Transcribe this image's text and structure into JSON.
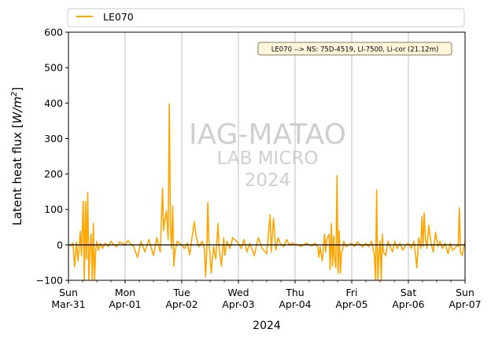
{
  "chart_data": {
    "type": "line",
    "title": "",
    "xlabel": "2024",
    "ylabel_plain": "Latent heat flux [",
    "ylabel_unit_W": "W",
    "ylabel_unit_m": "/m",
    "ylabel_unit_exp": "2",
    "ylabel_close": "]",
    "ylim": [
      -100,
      600
    ],
    "yticks": [
      -100,
      0,
      100,
      200,
      300,
      400,
      500,
      600
    ],
    "y_tick_labels": [
      "−100",
      "0",
      "100",
      "200",
      "300",
      "400",
      "500",
      "600"
    ],
    "xlim_days": [
      0,
      7
    ],
    "x_ticks": [
      {
        "day": 0,
        "weekday": "Sun",
        "date": "Mar-31"
      },
      {
        "day": 1,
        "weekday": "Mon",
        "date": "Apr-01"
      },
      {
        "day": 2,
        "weekday": "Tue",
        "date": "Apr-02"
      },
      {
        "day": 3,
        "weekday": "Wed",
        "date": "Apr-03"
      },
      {
        "day": 4,
        "weekday": "Thu",
        "date": "Apr-04"
      },
      {
        "day": 5,
        "weekday": "Fri",
        "date": "Apr-05"
      },
      {
        "day": 6,
        "weekday": "Sat",
        "date": "Apr-06"
      },
      {
        "day": 7,
        "weekday": "Sun",
        "date": "Apr-07"
      }
    ],
    "grid": "vertical",
    "legend_position": "top",
    "zero_line": true,
    "series": [
      {
        "name": "LE070",
        "color": "#FFA500",
        "points": [
          [
            0.0,
            0
          ],
          [
            0.04,
            -2
          ],
          [
            0.08,
            5
          ],
          [
            0.11,
            -62
          ],
          [
            0.14,
            8
          ],
          [
            0.17,
            -45
          ],
          [
            0.21,
            38
          ],
          [
            0.23,
            -30
          ],
          [
            0.26,
            123
          ],
          [
            0.28,
            -100
          ],
          [
            0.3,
            122
          ],
          [
            0.32,
            -40
          ],
          [
            0.34,
            148
          ],
          [
            0.36,
            -100
          ],
          [
            0.38,
            -10
          ],
          [
            0.4,
            30
          ],
          [
            0.42,
            -100
          ],
          [
            0.44,
            60
          ],
          [
            0.46,
            -100
          ],
          [
            0.48,
            -20
          ],
          [
            0.5,
            10
          ],
          [
            0.53,
            -15
          ],
          [
            0.56,
            5
          ],
          [
            0.6,
            -10
          ],
          [
            0.65,
            5
          ],
          [
            0.7,
            -5
          ],
          [
            0.75,
            10
          ],
          [
            0.8,
            0
          ],
          [
            0.85,
            -5
          ],
          [
            0.9,
            8
          ],
          [
            1.0,
            2
          ],
          [
            1.05,
            12
          ],
          [
            1.1,
            3
          ],
          [
            1.15,
            -5
          ],
          [
            1.22,
            -35
          ],
          [
            1.28,
            10
          ],
          [
            1.35,
            -20
          ],
          [
            1.42,
            15
          ],
          [
            1.5,
            -30
          ],
          [
            1.56,
            20
          ],
          [
            1.62,
            -20
          ],
          [
            1.66,
            160
          ],
          [
            1.68,
            40
          ],
          [
            1.7,
            70
          ],
          [
            1.73,
            95
          ],
          [
            1.76,
            15
          ],
          [
            1.78,
            398
          ],
          [
            1.8,
            50
          ],
          [
            1.82,
            -10
          ],
          [
            1.84,
            110
          ],
          [
            1.86,
            -60
          ],
          [
            1.88,
            -20
          ],
          [
            1.92,
            10
          ],
          [
            2.0,
            0
          ],
          [
            2.05,
            -10
          ],
          [
            2.1,
            5
          ],
          [
            2.14,
            -28
          ],
          [
            2.18,
            20
          ],
          [
            2.22,
            65
          ],
          [
            2.26,
            20
          ],
          [
            2.3,
            -5
          ],
          [
            2.36,
            10
          ],
          [
            2.4,
            -10
          ],
          [
            2.42,
            -90
          ],
          [
            2.44,
            -20
          ],
          [
            2.46,
            120
          ],
          [
            2.48,
            10
          ],
          [
            2.52,
            -80
          ],
          [
            2.56,
            -5
          ],
          [
            2.6,
            -40
          ],
          [
            2.64,
            60
          ],
          [
            2.66,
            -10
          ],
          [
            2.7,
            -60
          ],
          [
            2.74,
            20
          ],
          [
            2.76,
            -30
          ],
          [
            2.8,
            10
          ],
          [
            2.85,
            -10
          ],
          [
            2.9,
            20
          ],
          [
            3.0,
            5
          ],
          [
            3.05,
            -10
          ],
          [
            3.1,
            15
          ],
          [
            3.15,
            -20
          ],
          [
            3.2,
            5
          ],
          [
            3.28,
            -30
          ],
          [
            3.35,
            20
          ],
          [
            3.42,
            -10
          ],
          [
            3.5,
            -25
          ],
          [
            3.56,
            85
          ],
          [
            3.58,
            -20
          ],
          [
            3.62,
            75
          ],
          [
            3.66,
            -15
          ],
          [
            3.7,
            20
          ],
          [
            3.75,
            0
          ],
          [
            3.8,
            -5
          ],
          [
            3.85,
            15
          ],
          [
            3.9,
            0
          ],
          [
            3.95,
            5
          ],
          [
            4.0,
            2
          ],
          [
            4.05,
            0
          ],
          [
            4.1,
            -5
          ],
          [
            4.2,
            5
          ],
          [
            4.3,
            -3
          ],
          [
            4.35,
            5
          ],
          [
            4.4,
            -5
          ],
          [
            4.42,
            -35
          ],
          [
            4.44,
            -5
          ],
          [
            4.48,
            -45
          ],
          [
            4.52,
            30
          ],
          [
            4.54,
            -20
          ],
          [
            4.56,
            15
          ],
          [
            4.6,
            30
          ],
          [
            4.62,
            -70
          ],
          [
            4.64,
            60
          ],
          [
            4.66,
            -60
          ],
          [
            4.68,
            25
          ],
          [
            4.7,
            -40
          ],
          [
            4.72,
            -65
          ],
          [
            4.74,
            195
          ],
          [
            4.76,
            -80
          ],
          [
            4.78,
            40
          ],
          [
            4.8,
            -80
          ],
          [
            4.82,
            -20
          ],
          [
            4.84,
            -15
          ],
          [
            4.86,
            10
          ],
          [
            4.9,
            -5
          ],
          [
            5.0,
            5
          ],
          [
            5.05,
            -5
          ],
          [
            5.1,
            8
          ],
          [
            5.15,
            0
          ],
          [
            5.2,
            -6
          ],
          [
            5.25,
            5
          ],
          [
            5.3,
            -5
          ],
          [
            5.35,
            10
          ],
          [
            5.4,
            -28
          ],
          [
            5.42,
            -100
          ],
          [
            5.44,
            155
          ],
          [
            5.46,
            -100
          ],
          [
            5.48,
            -30
          ],
          [
            5.5,
            10
          ],
          [
            5.52,
            -100
          ],
          [
            5.54,
            30
          ],
          [
            5.56,
            -20
          ],
          [
            5.6,
            -30
          ],
          [
            5.64,
            10
          ],
          [
            5.68,
            -5
          ],
          [
            5.72,
            -20
          ],
          [
            5.76,
            10
          ],
          [
            5.8,
            -10
          ],
          [
            5.85,
            5
          ],
          [
            5.9,
            -15
          ],
          [
            5.96,
            0
          ],
          [
            6.0,
            5
          ],
          [
            6.05,
            -10
          ],
          [
            6.1,
            10
          ],
          [
            6.15,
            -65
          ],
          [
            6.18,
            20
          ],
          [
            6.22,
            -10
          ],
          [
            6.24,
            80
          ],
          [
            6.26,
            -5
          ],
          [
            6.28,
            90
          ],
          [
            6.3,
            20
          ],
          [
            6.33,
            -10
          ],
          [
            6.36,
            55
          ],
          [
            6.4,
            5
          ],
          [
            6.44,
            -20
          ],
          [
            6.48,
            35
          ],
          [
            6.52,
            -5
          ],
          [
            6.56,
            10
          ],
          [
            6.6,
            -10
          ],
          [
            6.65,
            5
          ],
          [
            6.7,
            -25
          ],
          [
            6.74,
            5
          ],
          [
            6.78,
            -15
          ],
          [
            6.82,
            -10
          ],
          [
            6.86,
            0
          ],
          [
            6.88,
            -5
          ],
          [
            6.9,
            105
          ],
          [
            6.92,
            -20
          ],
          [
            6.95,
            -30
          ],
          [
            7.0,
            10
          ]
        ]
      },
      {
        "name": "",
        "color": "#000000",
        "points": [
          [
            0,
            0
          ],
          [
            7,
            0
          ]
        ]
      }
    ],
    "annotation": "LE070 --> NS: 75D-4519, LI-7500, Li-cor (21.12m)",
    "watermark": [
      "IAG-MATAO",
      "LAB MICRO",
      "2024"
    ]
  }
}
